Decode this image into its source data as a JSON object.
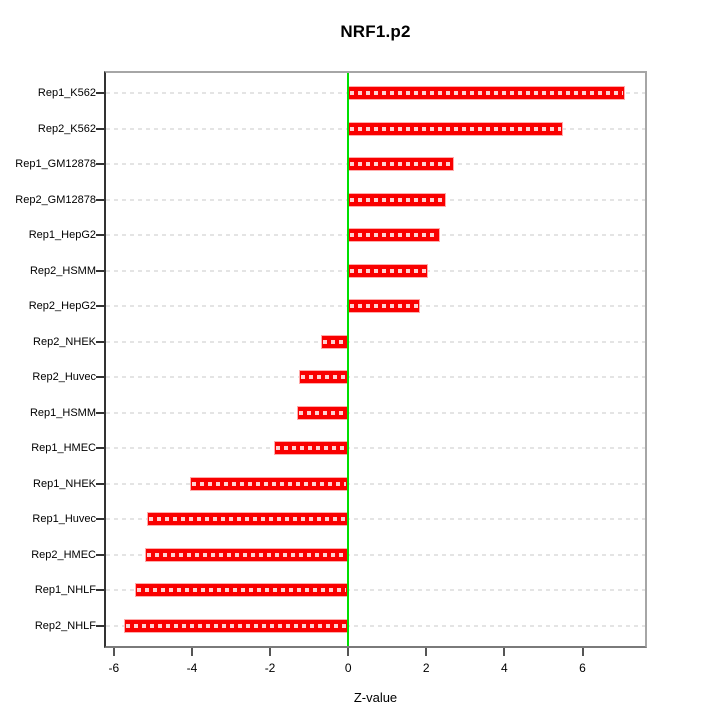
{
  "chart_data": {
    "type": "bar",
    "orientation": "horizontal",
    "title": "NRF1.p2",
    "xlabel": "Z-value",
    "ylabel": "",
    "categories": [
      "Rep1_K562",
      "Rep2_K562",
      "Rep1_GM12878",
      "Rep2_GM12878",
      "Rep1_HepG2",
      "Rep2_HSMM",
      "Rep2_HepG2",
      "Rep2_NHEK",
      "Rep2_Huvec",
      "Rep1_HSMM",
      "Rep1_HMEC",
      "Rep1_NHEK",
      "Rep1_Huvec",
      "Rep2_HMEC",
      "Rep1_NHLF",
      "Rep2_NHLF"
    ],
    "values": [
      7.1,
      5.5,
      2.7,
      2.5,
      2.35,
      2.05,
      1.85,
      -0.7,
      -1.25,
      -1.3,
      -1.9,
      -4.05,
      -5.15,
      -5.2,
      -5.45,
      -5.75
    ],
    "xlim": [
      -6.2,
      7.6
    ],
    "xticks": [
      -6,
      -4,
      -2,
      0,
      2,
      4,
      6
    ],
    "xtick_labels": [
      "-6",
      "-4",
      "-2",
      "0",
      "2",
      "4",
      "6"
    ],
    "grid": "dashed horizontal line per category",
    "legend": "none",
    "zero_reference_line": 0,
    "colors": {
      "bar": "#F90000",
      "bar_edge": "#FFABAB",
      "bar_dash": "#FFFFFF",
      "zero_line": "#00DF00",
      "gridline": "#E4E4E4",
      "box": "#A6A6A6",
      "axis": "#333333",
      "text": "#000000",
      "background": "#FFFFFF"
    }
  }
}
